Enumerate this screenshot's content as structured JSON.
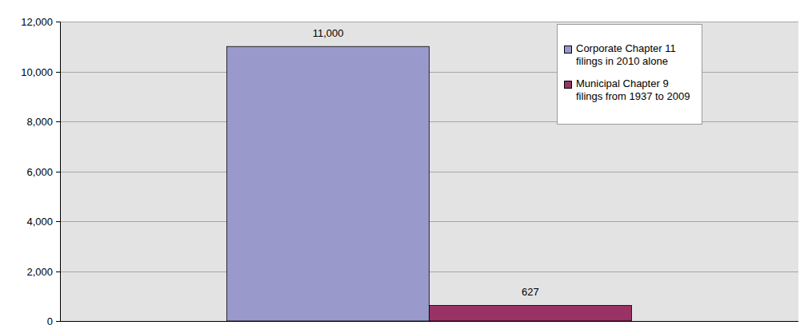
{
  "chart_data": {
    "type": "bar",
    "categories": [
      null
    ],
    "series": [
      {
        "name": "Corporate Chapter 11 filings in 2010 alone",
        "color": "#9999cc",
        "values": [
          11000
        ],
        "value_labels": [
          "11,000"
        ]
      },
      {
        "name": "Municipal Chapter 9 filings from 1937 to 2009",
        "color": "#993366",
        "values": [
          627
        ]
      }
    ],
    "ylim": [
      0,
      12000
    ],
    "yticks": [
      0,
      {
        "value": 2000,
        "label": "2,000"
      },
      {
        "value": 4000,
        "label": "4,000"
      },
      {
        "value": 6000,
        "label": "6,000"
      },
      {
        "value": 8000,
        "label": "8,000"
      },
      {
        "value": 10000,
        "label": "10,000"
      },
      {
        "value": 12000,
        "label": "12,000"
      }
    ],
    "grid": true,
    "legend": "upper right",
    "data_labels": true,
    "tick_labels": "y"
  }
}
